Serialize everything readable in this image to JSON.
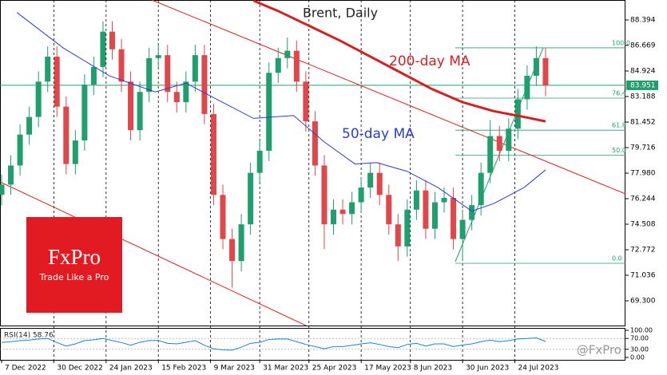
{
  "chart_data": {
    "type": "candlestick",
    "title": "Brent, Daily",
    "x": [
      0,
      3,
      6,
      9,
      12,
      15,
      18,
      21,
      24,
      27,
      30,
      33,
      36,
      39,
      42,
      45,
      48,
      51,
      54,
      57,
      60,
      63,
      66,
      69,
      72,
      75,
      78,
      81,
      84,
      87,
      90,
      93,
      96,
      99,
      102,
      105,
      108,
      111,
      114,
      117,
      120,
      123,
      126,
      129,
      132,
      135,
      138,
      141,
      144,
      147,
      150,
      153,
      156,
      159,
      162,
      165,
      168,
      171,
      174,
      177
    ],
    "open": [
      76.5,
      77.2,
      78.5,
      80.6,
      81.8,
      84.2,
      85.9,
      82.5,
      78.6,
      80.2,
      84.0,
      85.2,
      87.6,
      86.4,
      84.2,
      80.9,
      83.5,
      85.8,
      86.0,
      83.5,
      82.8,
      84.2,
      86.0,
      82.0,
      76.5,
      73.5,
      72.0,
      74.5,
      78.0,
      79.5,
      84.8,
      85.8,
      86.3,
      84.2,
      81.5,
      78.5,
      74.5,
      75.5,
      75.2,
      76.0,
      77.0,
      78.0,
      76.5,
      74.5,
      73.0,
      75.5,
      76.8,
      74.2,
      76.0,
      76.3,
      73.5,
      74.8,
      75.8,
      78.0,
      80.5,
      79.5,
      81.0,
      83.0,
      84.6,
      85.8
    ],
    "high": [
      77.9,
      79.2,
      81.3,
      82.5,
      84.9,
      86.6,
      86.6,
      83.2,
      80.9,
      84.7,
      85.9,
      88.3,
      88.3,
      87.1,
      84.9,
      84.2,
      86.5,
      86.7,
      86.7,
      84.2,
      84.9,
      86.7,
      86.7,
      82.7,
      77.2,
      74.2,
      75.2,
      78.7,
      80.2,
      85.5,
      86.5,
      87.2,
      87.0,
      84.9,
      82.2,
      79.2,
      76.2,
      76.2,
      76.7,
      77.7,
      78.7,
      78.7,
      77.2,
      75.2,
      76.2,
      77.5,
      77.5,
      76.7,
      77.0,
      77.0,
      75.5,
      76.5,
      78.7,
      81.6,
      81.2,
      81.7,
      83.7,
      85.3,
      86.6,
      86.5
    ],
    "low": [
      75.8,
      76.5,
      77.8,
      79.9,
      81.1,
      83.5,
      81.8,
      77.9,
      77.9,
      79.5,
      83.3,
      84.5,
      85.7,
      83.5,
      80.2,
      80.2,
      82.8,
      85.1,
      82.8,
      82.1,
      82.1,
      83.5,
      81.3,
      75.8,
      72.8,
      70.2,
      71.3,
      73.8,
      77.3,
      78.8,
      84.1,
      85.1,
      83.5,
      80.8,
      77.8,
      72.8,
      73.8,
      74.5,
      74.5,
      75.3,
      76.3,
      75.8,
      73.8,
      72.0,
      72.3,
      74.8,
      73.5,
      73.5,
      75.3,
      72.8,
      72.0,
      74.1,
      75.1,
      77.3,
      78.8,
      78.8,
      80.3,
      82.3,
      83.9,
      83.2
    ],
    "close": [
      77.2,
      78.5,
      80.6,
      81.8,
      84.2,
      85.9,
      82.5,
      78.6,
      80.2,
      84.0,
      85.2,
      87.6,
      86.4,
      84.2,
      80.9,
      83.5,
      85.8,
      86.0,
      83.5,
      82.8,
      84.2,
      86.0,
      82.0,
      76.5,
      73.5,
      72.0,
      74.5,
      78.0,
      79.5,
      84.8,
      85.8,
      86.3,
      84.2,
      81.5,
      78.5,
      74.5,
      75.5,
      75.2,
      76.0,
      77.0,
      78.0,
      76.5,
      74.5,
      73.0,
      75.5,
      76.8,
      74.2,
      76.0,
      76.3,
      73.5,
      74.8,
      75.8,
      78.0,
      80.5,
      79.5,
      81.0,
      83.0,
      84.6,
      85.8,
      83.95
    ],
    "up_color": "#1f9e6e",
    "down_color": "#e0464a",
    "xlim": [
      0,
      203
    ],
    "xticks": [
      {
        "value": 0,
        "label": "7 Dec 2022"
      },
      {
        "value": 17,
        "label": "30 Dec 2022"
      },
      {
        "value": 34,
        "label": "24 Jan 2023"
      },
      {
        "value": 51,
        "label": "15 Feb 2023"
      },
      {
        "value": 68,
        "label": "9 Mar 2023"
      },
      {
        "value": 84,
        "label": "31 Mar 2023"
      },
      {
        "value": 100,
        "label": "25 Apr 2023"
      },
      {
        "value": 117,
        "label": "17 May 2023"
      },
      {
        "value": 133,
        "label": "8 Jun 2023"
      },
      {
        "value": 150,
        "label": "30 Jun 2023"
      },
      {
        "value": 167,
        "label": "24 Jul 2023"
      }
    ],
    "ylim": [
      67.62,
      89.75
    ],
    "yticks": [
      {
        "value": 88.394,
        "label": "88.394"
      },
      {
        "value": 86.669,
        "label": "86.669"
      },
      {
        "value": 84.924,
        "label": "84.924"
      },
      {
        "value": 83.188,
        "label": "83.188"
      },
      {
        "value": 81.452,
        "label": "81.452"
      },
      {
        "value": 79.716,
        "label": "79.716"
      },
      {
        "value": 77.98,
        "label": "77.980"
      },
      {
        "value": 76.244,
        "label": "76.244"
      },
      {
        "value": 74.508,
        "label": "74.508"
      },
      {
        "value": 72.772,
        "label": "72.772"
      },
      {
        "value": 71.036,
        "label": "71.036"
      },
      {
        "value": 69.3,
        "label": "69.300"
      }
    ],
    "series": [
      {
        "name": "200-day MA",
        "color": "#d42020",
        "x": [
          82,
          90,
          100,
          110,
          120,
          130,
          140,
          150,
          160,
          170,
          177
        ],
        "values": [
          89.7,
          89.0,
          88.0,
          87.0,
          85.9,
          84.8,
          83.7,
          82.8,
          82.2,
          81.8,
          81.5
        ]
      },
      {
        "name": "50-day MA",
        "color": "#2b3bd0",
        "x": [
          5,
          20,
          35,
          50,
          60,
          70,
          82,
          95,
          105,
          115,
          122,
          132,
          142,
          153,
          160,
          170,
          177
        ],
        "values": [
          88.9,
          86.5,
          84.6,
          83.5,
          84.1,
          83.0,
          81.7,
          81.9,
          80.1,
          78.6,
          78.7,
          78.1,
          77.0,
          75.4,
          75.9,
          77.0,
          78.2
        ]
      }
    ],
    "fib_levels": [
      {
        "label": "100.0",
        "price": 86.5
      },
      {
        "label": "76.4",
        "price": 83.08
      },
      {
        "label": "61.8",
        "price": 80.9
      },
      {
        "label": "50.0",
        "price": 79.2
      },
      {
        "label": "0.0",
        "price": 71.85
      }
    ],
    "current_price": {
      "value": 83.951,
      "label": "83.951"
    },
    "rsi": {
      "label": "RSI(14) 58.76",
      "ylim": [
        0,
        100
      ],
      "yticks": [
        {
          "value": 100,
          "label": "100.00"
        },
        {
          "value": 70,
          "label": "70.00"
        },
        {
          "value": 30,
          "label": "30.00"
        },
        {
          "value": 0,
          "label": "0.00"
        }
      ],
      "values": [
        55,
        58,
        62,
        64,
        68,
        70,
        55,
        42,
        50,
        62,
        65,
        70,
        62,
        55,
        45,
        56,
        62,
        63,
        52,
        50,
        56,
        62,
        45,
        32,
        28,
        27,
        38,
        52,
        56,
        66,
        68,
        68,
        58,
        48,
        40,
        32,
        40,
        40,
        45,
        50,
        54,
        48,
        40,
        36,
        48,
        52,
        42,
        50,
        50,
        40,
        46,
        50,
        58,
        64,
        58,
        62,
        68,
        70,
        72,
        58.76
      ]
    }
  },
  "branding": {
    "logo": "FxPro",
    "tagline": "Trade Like a Pro",
    "watermark": "@FxPro"
  }
}
